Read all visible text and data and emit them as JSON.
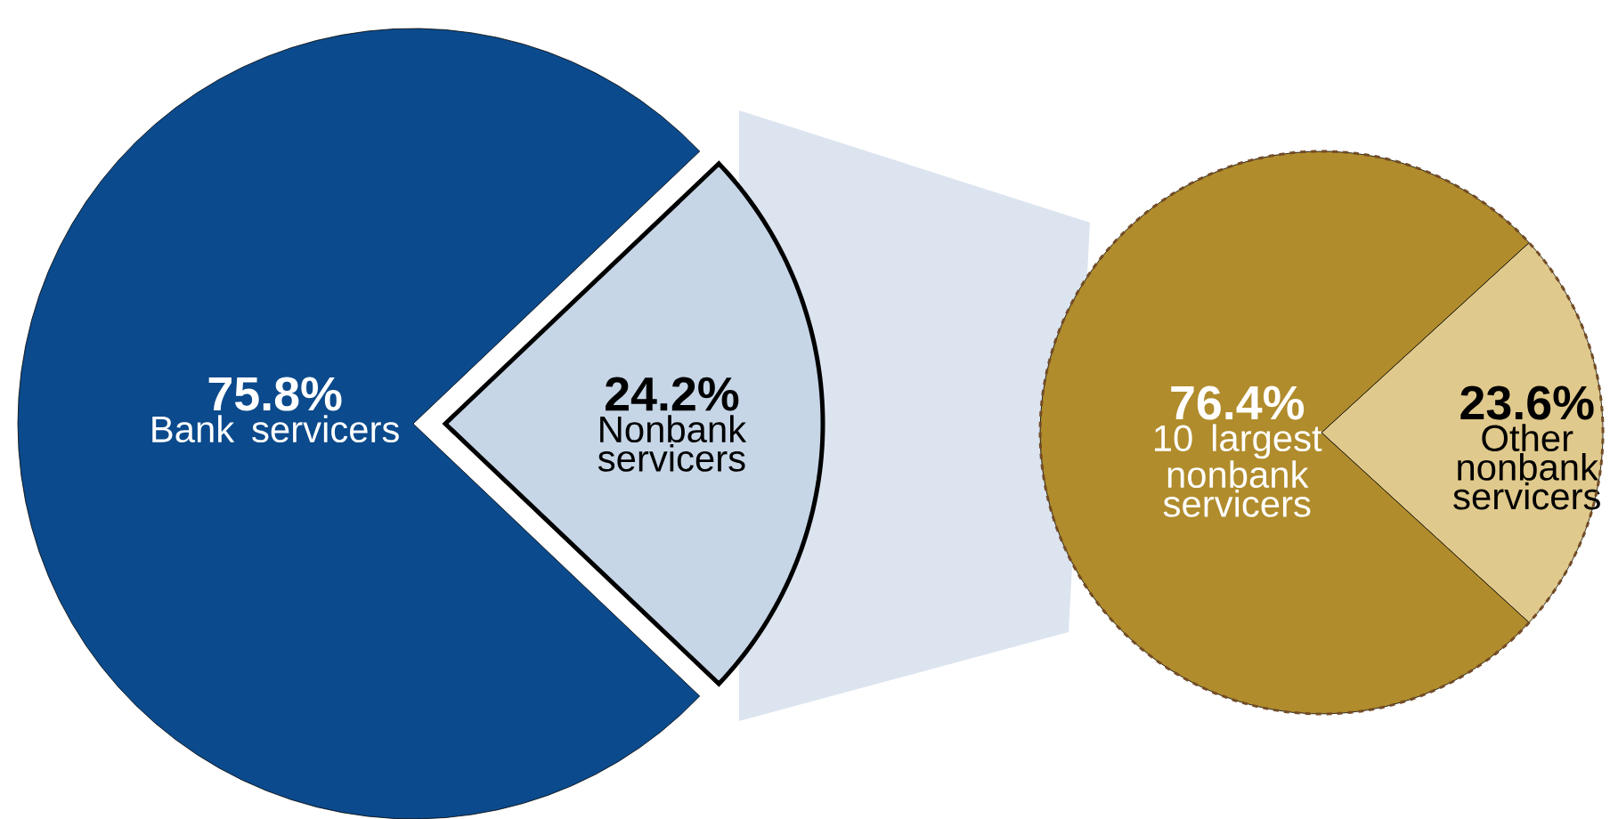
{
  "chart_data": [
    {
      "type": "pie",
      "categories": [
        "Bank servicers",
        "Nonbank servicers"
      ],
      "values": [
        75.8,
        24.2
      ],
      "colors": [
        "#0b4a8c",
        "#c6d6e7"
      ],
      "value_labels": [
        "75.8%",
        "24.2%"
      ]
    },
    {
      "type": "pie",
      "categories": [
        "10 largest nonbank servicers",
        "Other nonbank servicers"
      ],
      "values": [
        76.4,
        23.6
      ],
      "colors": [
        "#b08c2c",
        "#e0c98c"
      ],
      "value_labels": [
        "76.4%",
        "23.6%"
      ]
    }
  ]
}
